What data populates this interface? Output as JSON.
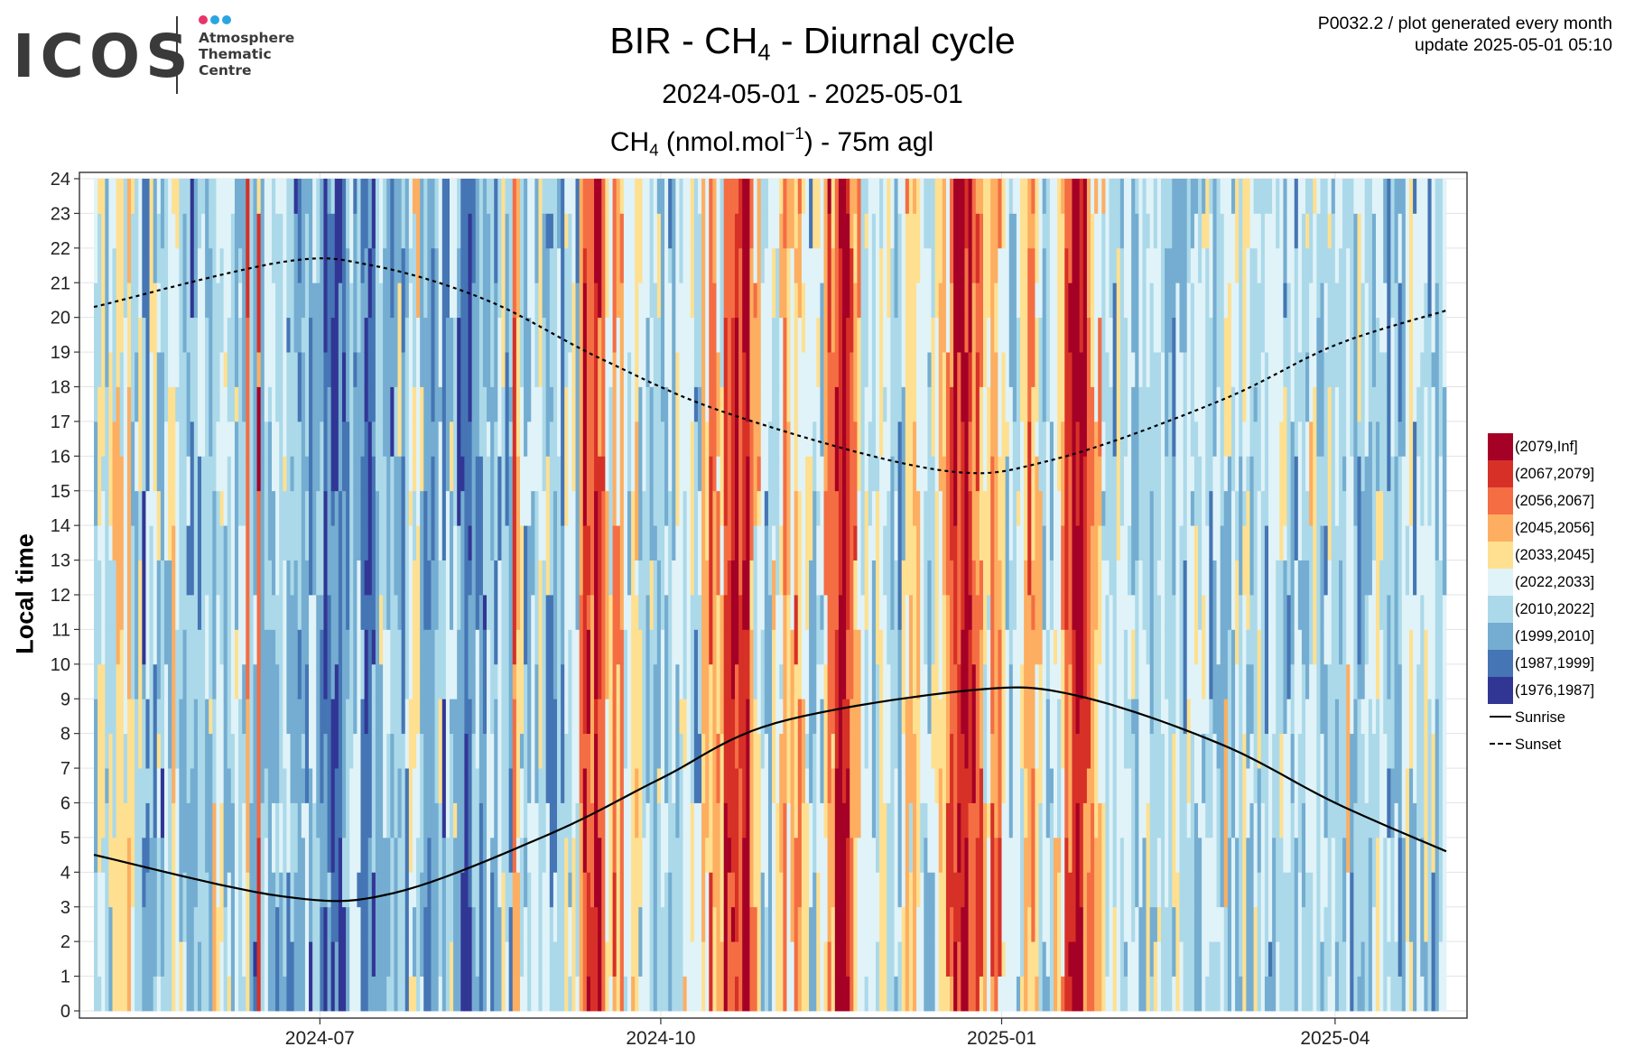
{
  "logo": {
    "wordmark": "ICOS",
    "lines": [
      "Atmosphere",
      "Thematic",
      "Centre"
    ],
    "dot_colors": [
      "#e8346b",
      "#2aa6df",
      "#2aa6df"
    ]
  },
  "header": {
    "title_pre": "BIR - CH",
    "title_sub": "4",
    "title_post": " - Diurnal cycle",
    "subtitle": "2024-05-01 - 2025-05-01",
    "quantity_pre": "CH",
    "quantity_sub": "4",
    "quantity_mid": " (nmol.mol",
    "quantity_sup": "−1",
    "quantity_post": ") - 75m agl"
  },
  "meta": {
    "product": "P0032.2 / plot generated every month",
    "update": "update  2025-05-01 05:10"
  },
  "chart_data": {
    "type": "heatmap",
    "title": "BIR - CH4 - Diurnal cycle",
    "subtitle": "2024-05-01 - 2025-05-01",
    "value_label": "CH4 (nmol.mol-1) - 75m agl",
    "ylabel": "Local time",
    "xlabel": "",
    "x_range": [
      "2024-05-01",
      "2025-05-01"
    ],
    "x_ticks": [
      "2024-07",
      "2024-10",
      "2025-01",
      "2025-04"
    ],
    "x_tick_dates": [
      "2024-07-01",
      "2024-10-01",
      "2025-01-01",
      "2025-04-01"
    ],
    "y_range": [
      0,
      24
    ],
    "y_ticks": [
      0,
      1,
      2,
      3,
      4,
      5,
      6,
      7,
      8,
      9,
      10,
      11,
      12,
      13,
      14,
      15,
      16,
      17,
      18,
      19,
      20,
      21,
      22,
      23,
      24
    ],
    "grid": true,
    "legend_position": "right",
    "color_bins": [
      {
        "label": "(2079,Inf]",
        "color": "#a50026"
      },
      {
        "label": "(2067,2079]",
        "color": "#d73027"
      },
      {
        "label": "(2056,2067]",
        "color": "#f46d43"
      },
      {
        "label": "(2045,2056]",
        "color": "#fdae61"
      },
      {
        "label": "(2033,2045]",
        "color": "#fee090"
      },
      {
        "label": "(2022,2033]",
        "color": "#e0f3f8"
      },
      {
        "label": "(2010,2022]",
        "color": "#abd9e9"
      },
      {
        "label": "(1999,2010]",
        "color": "#74add1"
      },
      {
        "label": "(1987,1999]",
        "color": "#4575b4"
      },
      {
        "label": "(1976,1987]",
        "color": "#313695"
      }
    ],
    "day_bins_approx": [
      6,
      5,
      5,
      6,
      5,
      5,
      4,
      5,
      5,
      3,
      5,
      6,
      5,
      7,
      7,
      6,
      6,
      6,
      7,
      6,
      5,
      4,
      5,
      6,
      6,
      6,
      7,
      6,
      6,
      6,
      6,
      6,
      5,
      6,
      5,
      6,
      6,
      6,
      5,
      6,
      6,
      2,
      6,
      7,
      2,
      7,
      6,
      6,
      6,
      6,
      6,
      5,
      7,
      7,
      7,
      7,
      7,
      7,
      7,
      6,
      7,
      7,
      8,
      7,
      8,
      8,
      8,
      8,
      7,
      6,
      7,
      6,
      7,
      8,
      8,
      8,
      6,
      6,
      6,
      7,
      7,
      6,
      6,
      7,
      6,
      5,
      5,
      5,
      6,
      7,
      8,
      7,
      6,
      6,
      7,
      6,
      6,
      6,
      7,
      8,
      8,
      8,
      7,
      7,
      7,
      7,
      6,
      6,
      7,
      6,
      5,
      6,
      6,
      2,
      3,
      5,
      6,
      6,
      5,
      6,
      5,
      6,
      6,
      6,
      6,
      6,
      7,
      5,
      6,
      5,
      6,
      3,
      1,
      1,
      2,
      0,
      1,
      2,
      5,
      5,
      2,
      4,
      3,
      6,
      6,
      4,
      4,
      5,
      6,
      6,
      6,
      6,
      6,
      6,
      6,
      6,
      6,
      5,
      5,
      5,
      5,
      5,
      6,
      6,
      3,
      4,
      2,
      3,
      4,
      4,
      2,
      2,
      1,
      1,
      2,
      0,
      1,
      2,
      4,
      4,
      5,
      6,
      6,
      5,
      5,
      4,
      3,
      4,
      4,
      3,
      3,
      4,
      5,
      6,
      6,
      5,
      6,
      4,
      2,
      3,
      1,
      0,
      0,
      1,
      2,
      3,
      4,
      5,
      5,
      5,
      6,
      5,
      5,
      5,
      5,
      6,
      6,
      6,
      5,
      4,
      4,
      3,
      4,
      5,
      6,
      6,
      6,
      5,
      4,
      4,
      3,
      2,
      1,
      1,
      0,
      0,
      1,
      2,
      2,
      3,
      4,
      4,
      3,
      3,
      3,
      4,
      5,
      6,
      6,
      5,
      5,
      4,
      3,
      3,
      4,
      5,
      6,
      6,
      6,
      5,
      4,
      3,
      1,
      1,
      0,
      0,
      0,
      1,
      2,
      3,
      4,
      4,
      5,
      6,
      6,
      6,
      5,
      6,
      6,
      5,
      5,
      6,
      6,
      6,
      5,
      6,
      6,
      6,
      5,
      6,
      6,
      6,
      5,
      6,
      6,
      5,
      6,
      6,
      6,
      6,
      6,
      6,
      6,
      6,
      6,
      5,
      6,
      6,
      6,
      6,
      5,
      6,
      6,
      6,
      6,
      5,
      6,
      6,
      6,
      6,
      5,
      6,
      6,
      6,
      6,
      6,
      6,
      6,
      5,
      5,
      6,
      6,
      6,
      5,
      6,
      6,
      6,
      6,
      5,
      6,
      6,
      6,
      6,
      6,
      6,
      6,
      5,
      5,
      6,
      6,
      6,
      6,
      6,
      6,
      5,
      5,
      6,
      6,
      6,
      5,
      6,
      6,
      6,
      6,
      6,
      6
    ],
    "bin_noise": 1.3,
    "sunrise": {
      "name": "Sunrise",
      "line_style": "solid",
      "values": [
        4.5,
        3.3,
        3.4,
        5.1,
        6.7,
        8.3,
        9.25,
        9.1,
        7.7,
        6.0,
        4.6
      ],
      "dates": [
        "2024-05-01",
        "2024-06-21",
        "2024-07-21",
        "2024-09-01",
        "2024-10-01",
        "2024-11-01",
        "2024-12-24",
        "2025-01-21",
        "2025-03-01",
        "2025-04-01",
        "2025-05-01"
      ]
    },
    "sunset": {
      "name": "Sunset",
      "line_style": "dashed",
      "values": [
        20.3,
        21.6,
        21.5,
        20.5,
        18.8,
        17.2,
        15.6,
        15.9,
        17.6,
        19.2,
        20.2
      ],
      "dates": [
        "2024-05-01",
        "2024-06-21",
        "2024-07-15",
        "2024-08-15",
        "2024-09-15",
        "2024-10-20",
        "2024-12-15",
        "2025-01-15",
        "2025-03-01",
        "2025-04-01",
        "2025-05-01"
      ]
    }
  }
}
